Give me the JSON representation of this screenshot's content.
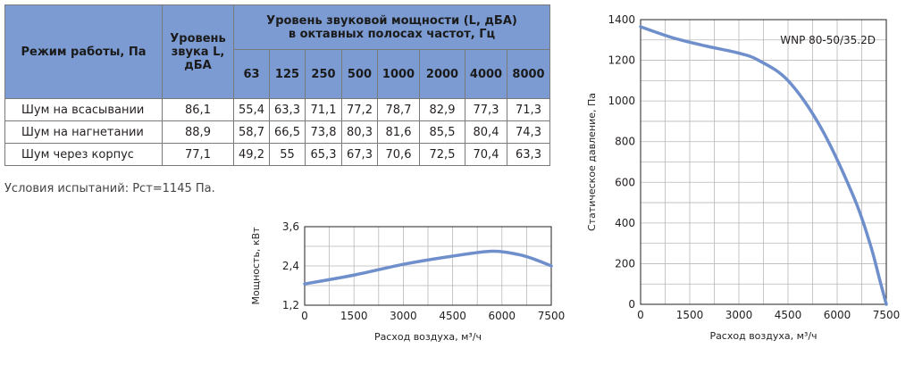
{
  "table": {
    "mode_header": "Режим работы, Па",
    "level_header": "Уровень звука L, дБА",
    "octave_header_line1": "Уровень звуковой мощности (L, дБА)",
    "octave_header_line2": "в октавных полосах частот, Гц",
    "frequencies": [
      "63",
      "125",
      "250",
      "500",
      "1000",
      "2000",
      "4000",
      "8000"
    ],
    "rows": [
      {
        "label": "Шум на всасывании",
        "level": "86,1",
        "values": [
          "55,4",
          "63,3",
          "71,1",
          "77,2",
          "78,7",
          "82,9",
          "77,3",
          "71,3"
        ]
      },
      {
        "label": "Шум на нагнетании",
        "level": "88,9",
        "values": [
          "58,7",
          "66,5",
          "73,8",
          "80,3",
          "81,6",
          "85,5",
          "80,4",
          "74,3"
        ]
      },
      {
        "label": "Шум через корпус",
        "level": "77,1",
        "values": [
          "49,2",
          "55",
          "65,3",
          "67,3",
          "70,6",
          "72,5",
          "70,4",
          "63,3"
        ]
      }
    ]
  },
  "conditions": "Условия испытаний: Рст=1145 Па.",
  "chart_data": [
    {
      "type": "line",
      "ylabel": "Мощность, кВт",
      "xlabel": "Расход воздуха, м³/ч",
      "xlim": [
        0,
        7500
      ],
      "ylim": [
        1.2,
        3.6
      ],
      "xticks": [
        "0",
        "1500",
        "3000",
        "4500",
        "6000",
        "7500"
      ],
      "yticks": [
        "1,2",
        "2,4",
        "3,6"
      ],
      "grid": true,
      "color": "#6f8fcc",
      "series": [
        {
          "x": [
            0,
            1500,
            3000,
            4500,
            5700,
            6500,
            7000,
            7500
          ],
          "y": [
            1.85,
            2.12,
            2.45,
            2.7,
            2.85,
            2.75,
            2.6,
            2.4
          ]
        }
      ]
    },
    {
      "type": "line",
      "title": "WNP 80-50/35.2D",
      "ylabel": "Статическое давление, Па",
      "xlabel": "Расход воздуха, м³/ч",
      "xlim": [
        0,
        7500
      ],
      "ylim": [
        0,
        1400
      ],
      "xticks": [
        "0",
        "1500",
        "3000",
        "4500",
        "6000",
        "7500"
      ],
      "yticks": [
        "0",
        "200",
        "400",
        "600",
        "800",
        "1000",
        "1200",
        "1400"
      ],
      "grid": true,
      "color": "#6f8fcc",
      "series": [
        {
          "x": [
            0,
            1000,
            2000,
            3000,
            3600,
            4500,
            5500,
            6500,
            7000,
            7300,
            7500
          ],
          "y": [
            1365,
            1310,
            1270,
            1235,
            1200,
            1100,
            870,
            530,
            300,
            120,
            0
          ]
        }
      ]
    }
  ]
}
